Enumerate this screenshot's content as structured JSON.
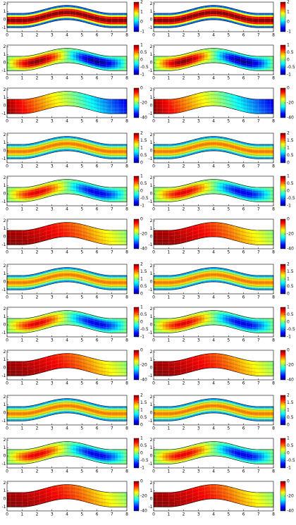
{
  "figure": {
    "xlim": [
      0,
      8
    ],
    "ylim": [
      -1.5,
      2.2
    ],
    "xticks": [
      0,
      1,
      2,
      3,
      4,
      5,
      6,
      7,
      8
    ],
    "yticks": [
      2,
      1,
      0,
      -1
    ],
    "rows": [
      {
        "colorbar_ticks": [
          2,
          1,
          0,
          -1
        ]
      },
      {
        "colorbar_ticks": [
          1,
          0.5,
          0,
          -0.5,
          -1
        ]
      },
      {
        "colorbar_ticks": [
          0,
          -20,
          -40
        ]
      },
      {
        "colorbar_ticks": [
          2,
          1.5,
          1,
          0.5,
          0
        ]
      },
      {
        "colorbar_ticks": [
          1,
          0.5,
          0,
          -0.5,
          -1
        ]
      },
      {
        "colorbar_ticks": [
          0,
          -20,
          -40
        ]
      },
      {
        "colorbar_ticks": [
          2,
          1.5,
          1,
          0.5,
          0
        ]
      },
      {
        "colorbar_ticks": [
          1,
          0.5,
          0,
          -0.5,
          -1
        ]
      },
      {
        "colorbar_ticks": [
          0,
          -20,
          -40
        ]
      },
      {
        "colorbar_ticks": [
          2,
          1.5,
          1,
          0.5,
          0
        ]
      },
      {
        "colorbar_ticks": [
          1,
          0.5,
          0,
          -0.5,
          -1
        ]
      },
      {
        "colorbar_ticks": [
          0,
          -20,
          -40
        ]
      }
    ]
  }
}
